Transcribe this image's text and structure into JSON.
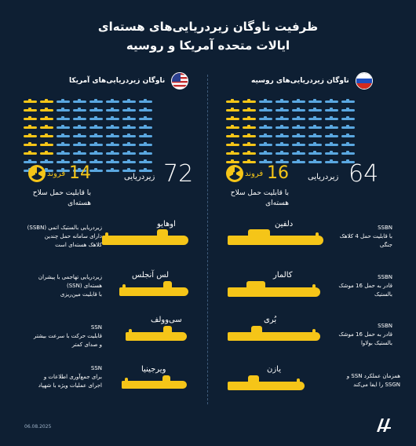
{
  "title": {
    "line1": "ظرفیت ناوگان زیردریایی‌های هسته‌ای",
    "line2": "ایالات متحده آمریکا و روسیه"
  },
  "usa": {
    "heading": "ناوگان زیردریایی‌های آمریکا",
    "total": "72",
    "total_label": "زیردریایی",
    "nuclear_count": "14",
    "nuclear_unit": "فروند",
    "nuclear_desc_line1": "با قابلیت حمل سلاح",
    "nuclear_desc_line2": "هسته‌ای",
    "grid_blue": 58,
    "grid_yellow": 14,
    "submarines": [
      {
        "name": "اوهایو",
        "desc": [
          "زیردریایی بالستیک اتمی (SSBN)",
          "دارای سامانه حمل چندین",
          "کلاهک هسته‌ای است"
        ]
      },
      {
        "name": "لس آنجلس",
        "desc": [
          "زیردریایی تهاجمی با پیشران",
          "هسته‌ای (SSN)",
          "با قابلیت مین‌ریزی"
        ]
      },
      {
        "name": "سی‌وولف",
        "desc": [
          "SSN",
          "قابلیت حرکت با سرعت بیشتر",
          "و صدای کمتر"
        ]
      },
      {
        "name": "ویرجینیا",
        "desc": [
          "SSN",
          "برای جمع‌آوری اطلاعات و",
          "اجرای عملیات ویژه با شهپاد"
        ]
      }
    ]
  },
  "russia": {
    "heading": "ناوگان زیردریایی‌های روسیه",
    "total": "64",
    "total_label": "زیردریایی",
    "nuclear_count": "16",
    "nuclear_unit": "فروند",
    "nuclear_desc_line1": "با قابلیت حمل سلاح",
    "nuclear_desc_line2": "هسته‌ای",
    "grid_blue": 48,
    "grid_yellow": 16,
    "submarines": [
      {
        "name": "دلفین",
        "desc": [
          "SSBN",
          "با قابلیت حمل 4 کلاهک",
          "جنگی"
        ]
      },
      {
        "name": "کالمار",
        "desc": [
          "SSBN",
          "قادر به حمل 16 موشک",
          "بالستیک"
        ]
      },
      {
        "name": "بُری",
        "desc": [
          "SSBN",
          "قادر به حمل 16 موشک",
          "بالستیک بولاوا"
        ]
      },
      {
        "name": "یازن",
        "desc": [
          "همزمان عملکرد SSN و",
          "SSGN را ایفا می‌کند"
        ]
      }
    ]
  },
  "footer": {
    "date": "06.08.2025"
  },
  "colors": {
    "background": "#0e1f33",
    "blue_sub": "#5aa7e0",
    "yellow_sub": "#f5c518"
  }
}
